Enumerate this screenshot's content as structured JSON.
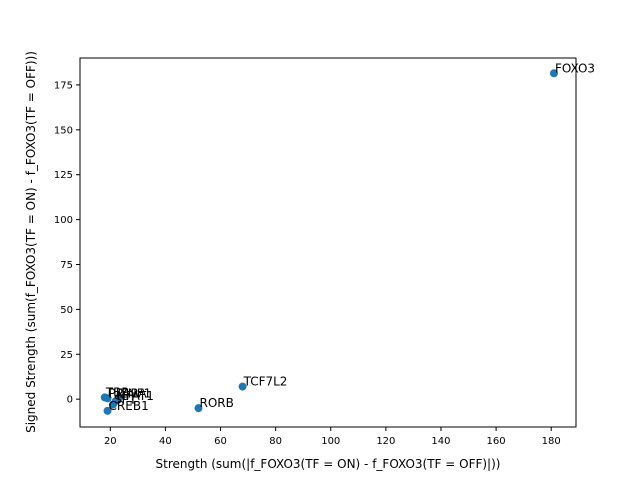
{
  "chart_data": {
    "type": "scatter",
    "title": "",
    "xlabel": "Strength (sum(|f_FOXO3(TF = ON) - f_FOXO3(TF = OFF)|))",
    "ylabel": "Signed Strength (sum(f_FOXO3(TF = ON) - f_FOXO3(TF = OFF)))",
    "xlim": [
      9.0,
      189.0
    ],
    "ylim": [
      -15.5,
      190.0
    ],
    "x_ticks": [
      20,
      40,
      60,
      80,
      100,
      120,
      140,
      160,
      180
    ],
    "y_ticks": [
      0,
      25,
      50,
      75,
      100,
      125,
      150,
      175
    ],
    "grid": false,
    "marker_color": "#1f77b4",
    "points": [
      {
        "label": "FOXO3",
        "x": 181.0,
        "y": 181.5
      },
      {
        "label": "TCF7L2",
        "x": 68.0,
        "y": 7.0
      },
      {
        "label": "RORB",
        "x": 52.0,
        "y": -5.0
      },
      {
        "label": "TBP",
        "x": 18.0,
        "y": 1.0
      },
      {
        "label": "PPARA",
        "x": 19.0,
        "y": 0.5
      },
      {
        "label": "ZNF1",
        "x": 23.0,
        "y": 0.3
      },
      {
        "label": "NFAT1",
        "x": 22.0,
        "y": -1.0
      },
      {
        "label": "SP1",
        "x": 21.0,
        "y": -3.0
      },
      {
        "label": "CREB1",
        "x": 19.0,
        "y": -6.5
      }
    ]
  }
}
